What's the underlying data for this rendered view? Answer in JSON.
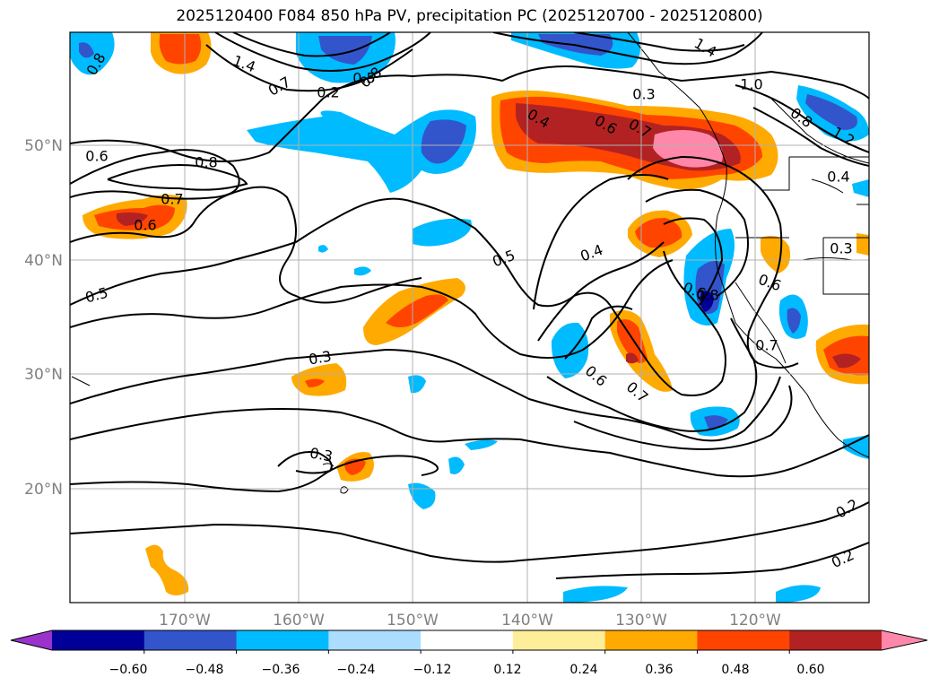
{
  "title": "2025120400 F084 850 hPa PV, precipitation PC (2025120700 - 2025120800)",
  "map": {
    "lat_labels": [
      "50°N",
      "40°N",
      "30°N",
      "20°N"
    ],
    "lon_labels": [
      "170°W",
      "160°W",
      "150°W",
      "140°W",
      "130°W",
      "120°W"
    ],
    "label_color": "#808080",
    "grid_color": "#b0b0b0"
  },
  "contour_labels": [
    "0.8",
    "1.4",
    "0.7",
    "0.8",
    "1.4",
    "1.0",
    "0.8",
    "1.2",
    "0.4",
    "0.6",
    "0.7",
    "0.6",
    "0.8",
    "0.4",
    "0.6",
    "0.7",
    "0.6",
    "0.8",
    "0.7",
    "0.3",
    "0.2",
    "0.5",
    "0.5",
    "0.4",
    "0.5",
    "0.3",
    "0.6",
    "0.3",
    "0.6",
    "0.7",
    "0.3",
    "0.2",
    "0.2"
  ],
  "colorbar": {
    "ticks": [
      "−0.60",
      "−0.48",
      "−0.36",
      "−0.24",
      "−0.12",
      "0.12",
      "0.24",
      "0.36",
      "0.48",
      "0.60"
    ],
    "colors": [
      "#9933cc",
      "#000099",
      "#3355cc",
      "#00bbff",
      "#aaddff",
      "#ffffff",
      "#ffee99",
      "#ffaa00",
      "#ff4400",
      "#b22222",
      "#ff88aa"
    ]
  }
}
